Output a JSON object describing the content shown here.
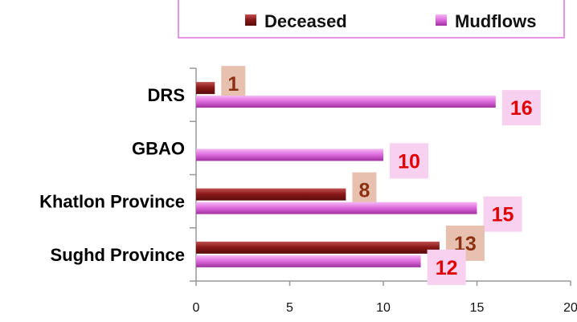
{
  "colors": {
    "deceased": "#8B1A1A",
    "deceased_label_bg": "#E8C0B0",
    "deceased_label_text": "#8B3010",
    "mudflows": "#E070E0",
    "mudflows_label_bg": "#F8D0F0",
    "mudflows_label_text": "#E00000",
    "legend_border": "#E070E0",
    "axis": "#999999"
  },
  "chart_data": {
    "type": "bar",
    "orientation": "horizontal",
    "categories": [
      "DRS",
      "GBAO",
      "Khatlon Province",
      "Sughd Province"
    ],
    "series": [
      {
        "name": "Deceased",
        "values": [
          1,
          null,
          8,
          13
        ]
      },
      {
        "name": "Mudflows",
        "values": [
          16,
          10,
          15,
          12
        ]
      }
    ],
    "xlim": [
      0,
      20
    ],
    "xticks": [
      "0",
      "5",
      "10",
      "15",
      "20"
    ],
    "legend": "top",
    "grid": false
  }
}
